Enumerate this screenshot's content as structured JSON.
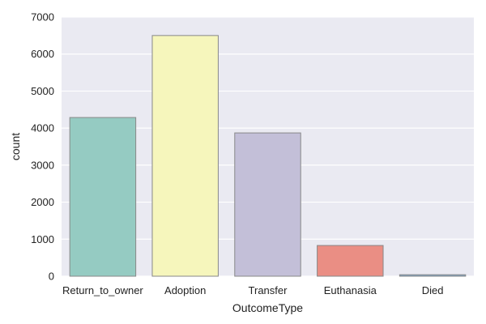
{
  "chart_data": {
    "type": "bar",
    "xlabel": "OutcomeType",
    "ylabel": "count",
    "categories": [
      "Return_to_owner",
      "Adoption",
      "Transfer",
      "Euthanasia",
      "Died"
    ],
    "values": [
      4286,
      6500,
      3870,
      830,
      40
    ],
    "ylim": [
      0,
      7000
    ],
    "yticks": [
      "0",
      "1000",
      "2000",
      "3000",
      "4000",
      "5000",
      "6000",
      "7000"
    ],
    "grid": true,
    "legend": "none",
    "colors": {
      "plot_background": "#eaeaf2",
      "grid": "#ffffff",
      "bar_edge": "#888888",
      "bars": [
        "#95cbc2",
        "#f6f6bc",
        "#c3bfd8",
        "#ea8e84",
        "#7ea6c8"
      ]
    }
  }
}
